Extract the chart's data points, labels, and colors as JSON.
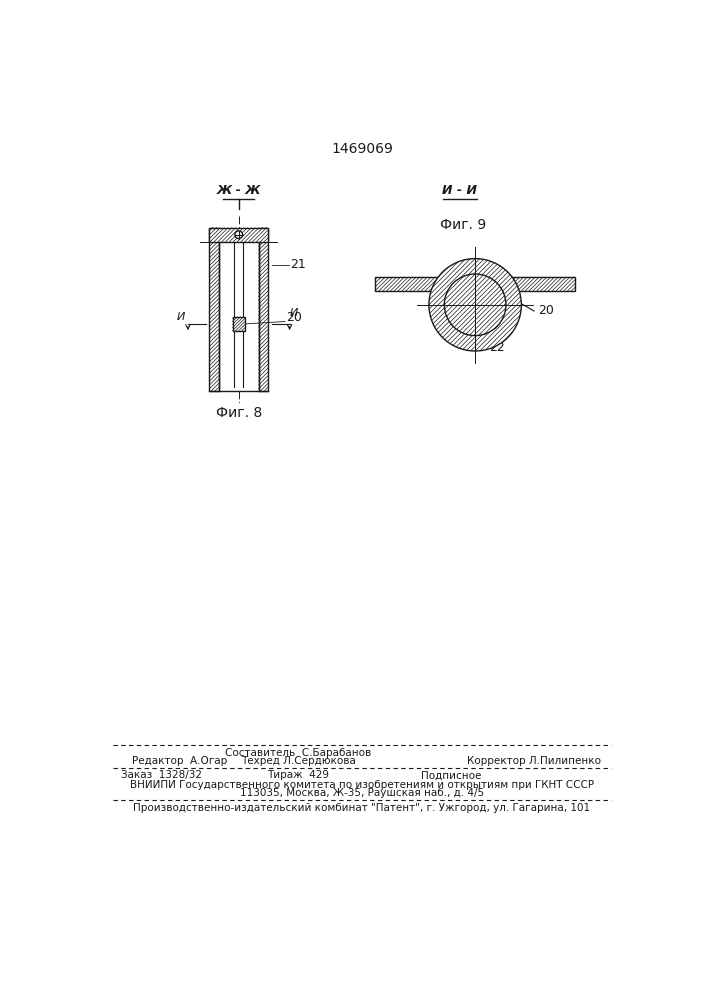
{
  "patent_number": "1469069",
  "bg_color": "#ffffff",
  "fig8_label": "Фиг. 8",
  "fig9_label": "Фиг. 9",
  "section_zh": "Ж - Ж",
  "section_i": "И - И",
  "label_21": "21",
  "label_20a": "20",
  "label_20b": "20",
  "label_22": "22",
  "footer_line1_left": "Редактор  А.Огар",
  "footer_line1_center_top": "Составитель  С.Барабанов",
  "footer_line1_center": "Техред Л.Сердюкова",
  "footer_line1_right": "Корректор Л.Пилипенко",
  "footer_line2_left": "Заказ  1328/32",
  "footer_line2_center": "Тираж  429",
  "footer_line2_right": "Подписное",
  "footer_line3": "ВНИИПИ Государственного комитета по изобретениям и открытиям при ГКНТ СССР",
  "footer_line4": "113035, Москва, Ж-35, Раушская наб., д. 4/5",
  "footer_line5": "Производственно-издательский комбинат \"Патент\", г. Ужгород, ул. Гагарина, 101"
}
